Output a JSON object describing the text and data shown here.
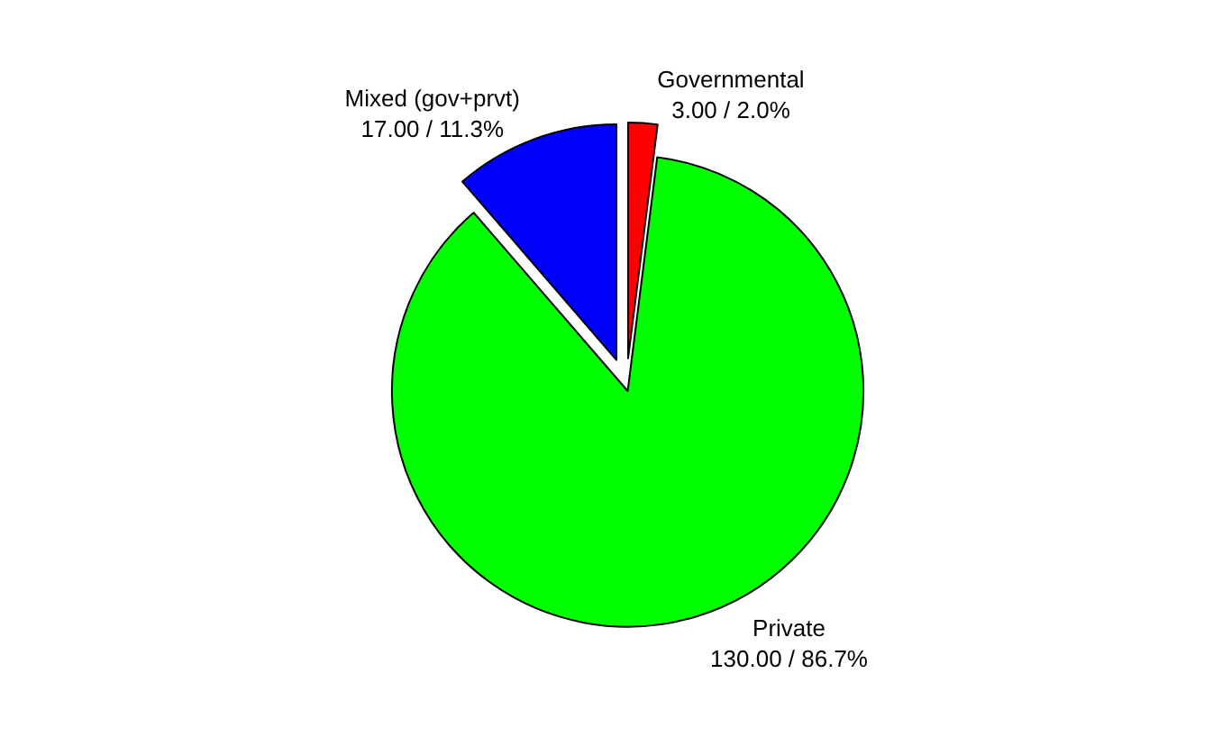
{
  "chart_data": {
    "type": "pie",
    "categories": [
      "Governmental",
      "Private",
      "Mixed (gov+prvt)"
    ],
    "values": [
      3,
      130,
      17
    ],
    "value_labels": [
      "3.00 / 2.0%",
      "130.00 / 86.7%",
      "17.00 / 11.3%"
    ],
    "colors": [
      "#ff0000",
      "#00ff00",
      "#0000ff"
    ],
    "legend": false
  }
}
